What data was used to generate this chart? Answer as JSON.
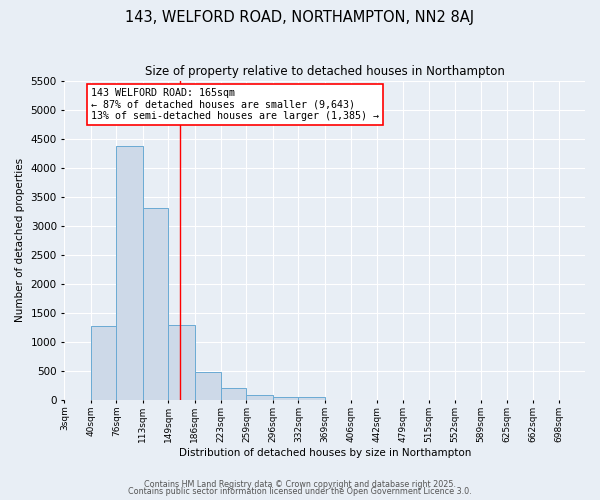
{
  "title": "143, WELFORD ROAD, NORTHAMPTON, NN2 8AJ",
  "subtitle": "Size of property relative to detached houses in Northampton",
  "xlabel": "Distribution of detached houses by size in Northampton",
  "ylabel": "Number of detached properties",
  "bar_color": "#cdd9e8",
  "bar_edge_color": "#6aaad4",
  "background_color": "#e8eef5",
  "grid_color": "#ffffff",
  "red_line_x": 165,
  "annotation_text": "143 WELFORD ROAD: 165sqm\n← 87% of detached houses are smaller (9,643)\n13% of semi-detached houses are larger (1,385) →",
  "bins": [
    3,
    40,
    76,
    113,
    149,
    186,
    223,
    259,
    296,
    332,
    369,
    406,
    442,
    479,
    515,
    552,
    589,
    625,
    662,
    698,
    735
  ],
  "counts": [
    0,
    1270,
    4380,
    3310,
    1290,
    490,
    200,
    90,
    60,
    55,
    0,
    0,
    0,
    0,
    0,
    0,
    0,
    0,
    0,
    0
  ],
  "ylim": [
    0,
    5500
  ],
  "yticks": [
    0,
    500,
    1000,
    1500,
    2000,
    2500,
    3000,
    3500,
    4000,
    4500,
    5000,
    5500
  ],
  "footer1": "Contains HM Land Registry data © Crown copyright and database right 2025.",
  "footer2": "Contains public sector information licensed under the Open Government Licence 3.0."
}
